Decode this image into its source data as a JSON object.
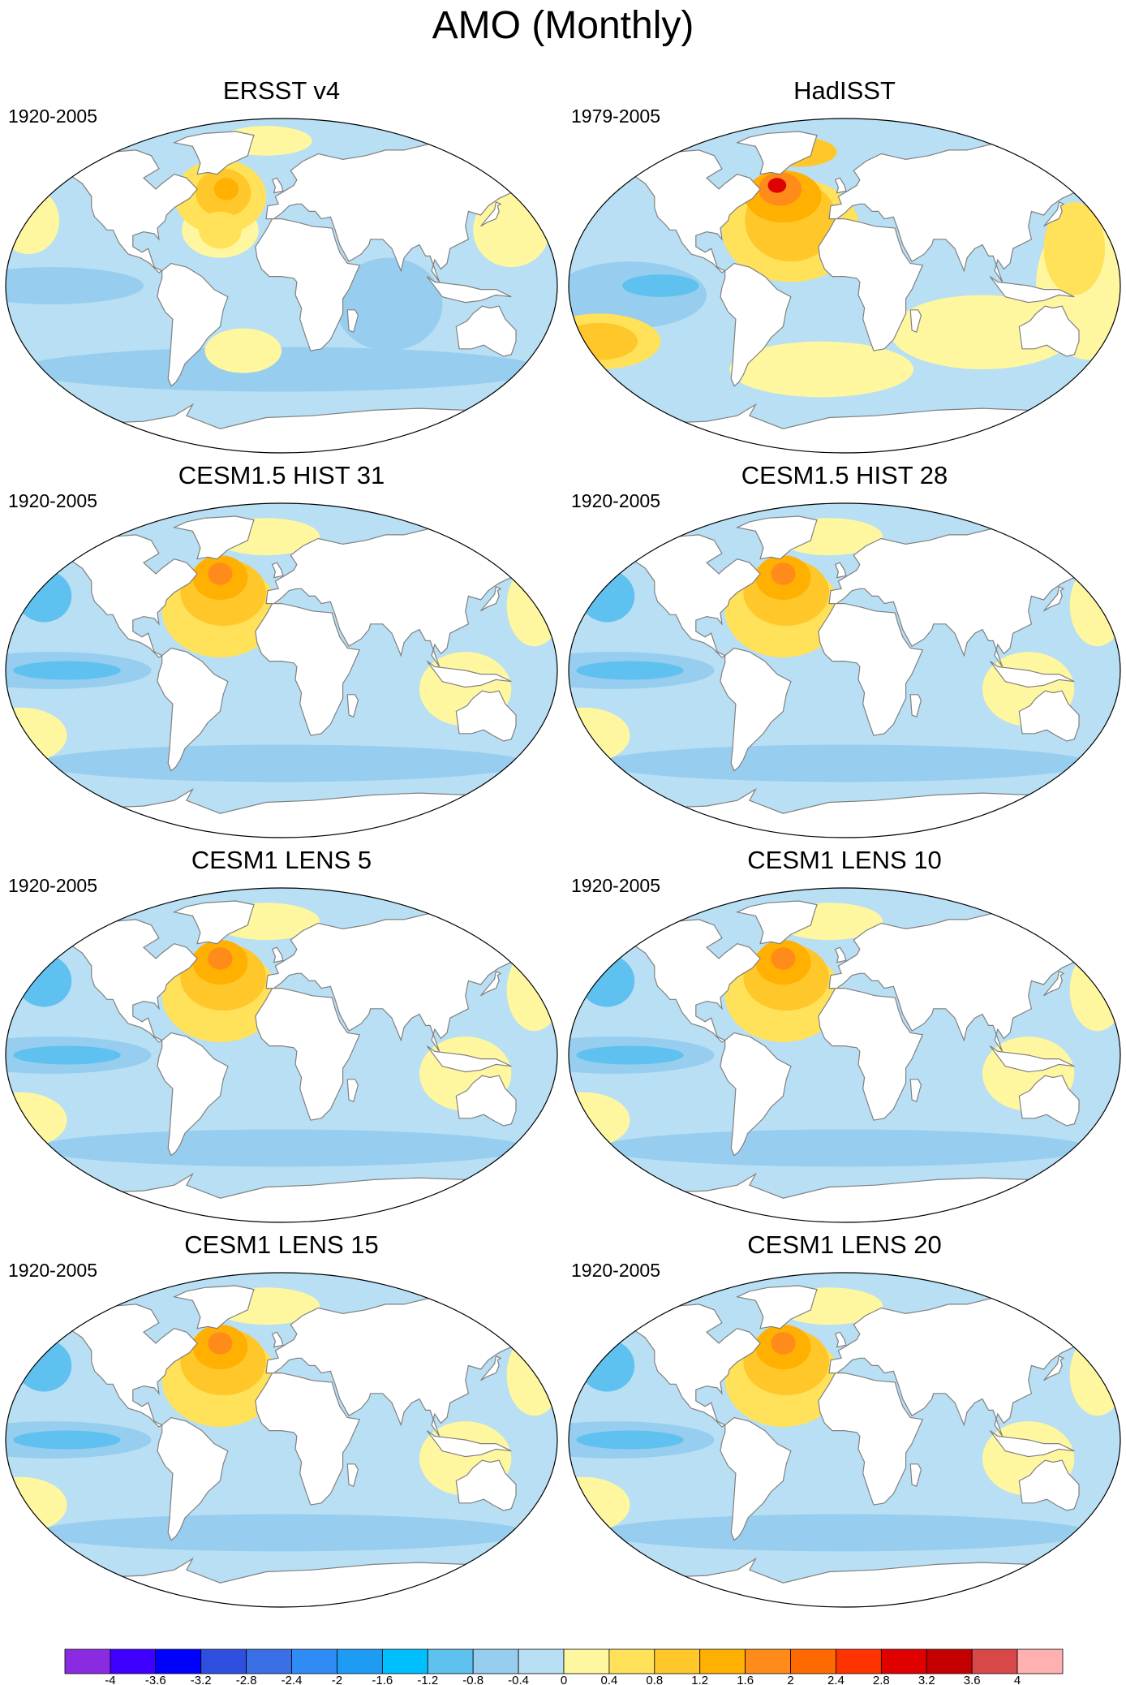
{
  "title": "AMO (Monthly)",
  "panels": [
    {
      "title": "ERSST v4",
      "period": "1920-2005",
      "pattern": "muted"
    },
    {
      "title": "HadISST",
      "period": "1979-2005",
      "pattern": "strong"
    },
    {
      "title": "CESM1.5 HIST 31",
      "period": "1920-2005",
      "pattern": "model"
    },
    {
      "title": "CESM1.5 HIST 28",
      "period": "1920-2005",
      "pattern": "model"
    },
    {
      "title": "CESM1 LENS 5",
      "period": "1920-2005",
      "pattern": "model"
    },
    {
      "title": "CESM1 LENS 10",
      "period": "1920-2005",
      "pattern": "model"
    },
    {
      "title": "CESM1 LENS 15",
      "period": "1920-2005",
      "pattern": "model"
    },
    {
      "title": "CESM1 LENS 20",
      "period": "1920-2005",
      "pattern": "model"
    }
  ],
  "colorbar": {
    "labels": [
      "-4",
      "-3.6",
      "-3.2",
      "-2.8",
      "-2.4",
      "-2",
      "-1.6",
      "-1.2",
      "-0.8",
      "-0.4",
      "0",
      "0.4",
      "0.8",
      "1.2",
      "1.6",
      "2",
      "2.4",
      "2.8",
      "3.2",
      "3.6",
      "4"
    ],
    "colors": [
      "#8a2be2",
      "#3e00ff",
      "#0000ff",
      "#2f4fe0",
      "#3b6fe6",
      "#2f8cf5",
      "#1e9bf2",
      "#00bfff",
      "#5ec1ef",
      "#97cdee",
      "#b8dff3",
      "#fff7a0",
      "#ffe15a",
      "#ffc72a",
      "#ffb000",
      "#ff8c1a",
      "#ff6a00",
      "#ff3300",
      "#e00000",
      "#c40000",
      "#d94848",
      "#ffb0b0"
    ]
  }
}
